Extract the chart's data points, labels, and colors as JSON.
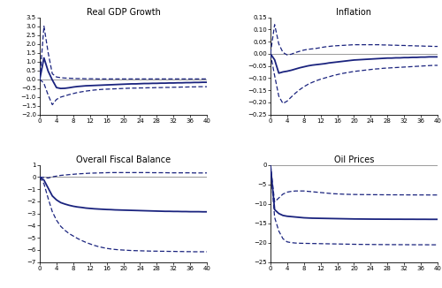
{
  "titles": [
    "Real GDP Growth",
    "Inflation",
    "Overall Fiscal Balance",
    "Oil Prices"
  ],
  "line_color": "#1a237e",
  "zero_line_color": "#999999",
  "horizon": 41,
  "xlim": [
    0,
    40
  ],
  "xticks": [
    0,
    4,
    8,
    12,
    16,
    20,
    24,
    28,
    32,
    36,
    40
  ],
  "gdp_median": [
    0.0,
    1.2,
    0.45,
    -0.05,
    -0.48,
    -0.53,
    -0.52,
    -0.49,
    -0.45,
    -0.42,
    -0.4,
    -0.38,
    -0.37,
    -0.36,
    -0.35,
    -0.34,
    -0.33,
    -0.32,
    -0.31,
    -0.3,
    -0.29,
    -0.28,
    -0.27,
    -0.27,
    -0.26,
    -0.25,
    -0.25,
    -0.24,
    -0.24,
    -0.23,
    -0.23,
    -0.22,
    -0.22,
    -0.21,
    -0.21,
    -0.2,
    -0.2,
    -0.19,
    -0.19,
    -0.18,
    -0.18
  ],
  "gdp_upper": [
    0.0,
    3.0,
    1.5,
    0.3,
    0.12,
    0.08,
    0.06,
    0.05,
    0.04,
    0.03,
    0.03,
    0.02,
    0.02,
    0.02,
    0.01,
    0.01,
    0.01,
    0.01,
    0.01,
    0.01,
    0.01,
    0.01,
    0.01,
    0.01,
    0.01,
    0.01,
    0.01,
    0.01,
    0.01,
    0.01,
    0.01,
    0.01,
    0.01,
    0.01,
    0.01,
    0.01,
    0.01,
    0.01,
    0.01,
    0.01,
    0.01
  ],
  "gdp_lower": [
    0.0,
    -0.25,
    -0.9,
    -1.45,
    -1.15,
    -1.02,
    -0.95,
    -0.88,
    -0.82,
    -0.76,
    -0.72,
    -0.68,
    -0.65,
    -0.62,
    -0.6,
    -0.58,
    -0.57,
    -0.56,
    -0.55,
    -0.54,
    -0.53,
    -0.52,
    -0.51,
    -0.51,
    -0.5,
    -0.5,
    -0.49,
    -0.49,
    -0.48,
    -0.48,
    -0.47,
    -0.47,
    -0.46,
    -0.46,
    -0.45,
    -0.45,
    -0.44,
    -0.44,
    -0.43,
    -0.43,
    -0.43
  ],
  "gdp_ylim": [
    -2,
    3.5
  ],
  "gdp_yticks": [
    -2,
    -1.5,
    -1,
    -0.5,
    0,
    0.5,
    1,
    1.5,
    2,
    2.5,
    3,
    3.5
  ],
  "inf_median": [
    0.0,
    -0.025,
    -0.08,
    -0.075,
    -0.072,
    -0.068,
    -0.063,
    -0.058,
    -0.054,
    -0.05,
    -0.047,
    -0.045,
    -0.043,
    -0.041,
    -0.038,
    -0.036,
    -0.034,
    -0.032,
    -0.03,
    -0.028,
    -0.026,
    -0.025,
    -0.024,
    -0.023,
    -0.022,
    -0.021,
    -0.02,
    -0.019,
    -0.018,
    -0.018,
    -0.017,
    -0.017,
    -0.016,
    -0.016,
    -0.015,
    -0.015,
    -0.014,
    -0.014,
    -0.013,
    -0.013,
    -0.013
  ],
  "inf_upper": [
    0.0,
    0.12,
    0.04,
    0.005,
    -0.005,
    -0.002,
    0.005,
    0.01,
    0.015,
    0.018,
    0.02,
    0.022,
    0.025,
    0.028,
    0.03,
    0.032,
    0.033,
    0.034,
    0.035,
    0.036,
    0.037,
    0.037,
    0.037,
    0.037,
    0.037,
    0.037,
    0.037,
    0.036,
    0.036,
    0.035,
    0.035,
    0.034,
    0.034,
    0.033,
    0.033,
    0.032,
    0.032,
    0.031,
    0.031,
    0.03,
    0.03
  ],
  "inf_lower": [
    0.0,
    -0.09,
    -0.175,
    -0.205,
    -0.195,
    -0.178,
    -0.162,
    -0.148,
    -0.136,
    -0.126,
    -0.118,
    -0.111,
    -0.105,
    -0.1,
    -0.095,
    -0.09,
    -0.086,
    -0.082,
    -0.079,
    -0.076,
    -0.073,
    -0.071,
    -0.069,
    -0.067,
    -0.065,
    -0.063,
    -0.062,
    -0.06,
    -0.059,
    -0.058,
    -0.057,
    -0.056,
    -0.055,
    -0.054,
    -0.053,
    -0.052,
    -0.051,
    -0.05,
    -0.049,
    -0.048,
    -0.048
  ],
  "inf_ylim": [
    -0.25,
    0.15
  ],
  "inf_yticks": [
    -0.25,
    -0.2,
    -0.15,
    -0.1,
    -0.05,
    0.0,
    0.05,
    0.1,
    0.15
  ],
  "fis_median": [
    0.0,
    -0.25,
    -0.9,
    -1.55,
    -1.88,
    -2.1,
    -2.22,
    -2.32,
    -2.4,
    -2.46,
    -2.5,
    -2.55,
    -2.58,
    -2.61,
    -2.63,
    -2.65,
    -2.67,
    -2.68,
    -2.7,
    -2.71,
    -2.72,
    -2.73,
    -2.74,
    -2.75,
    -2.76,
    -2.77,
    -2.78,
    -2.79,
    -2.8,
    -2.81,
    -2.82,
    -2.82,
    -2.83,
    -2.83,
    -2.84,
    -2.84,
    -2.85,
    -2.85,
    -2.85,
    -2.86,
    -2.86
  ],
  "fis_upper": [
    0.0,
    -0.03,
    -0.08,
    0.02,
    0.08,
    0.14,
    0.17,
    0.2,
    0.23,
    0.26,
    0.28,
    0.3,
    0.32,
    0.33,
    0.34,
    0.35,
    0.36,
    0.37,
    0.37,
    0.37,
    0.37,
    0.37,
    0.37,
    0.37,
    0.37,
    0.37,
    0.37,
    0.36,
    0.36,
    0.36,
    0.36,
    0.35,
    0.35,
    0.35,
    0.35,
    0.35,
    0.35,
    0.34,
    0.34,
    0.34,
    0.34
  ],
  "fis_lower": [
    0.0,
    -0.55,
    -1.75,
    -2.85,
    -3.55,
    -4.05,
    -4.38,
    -4.65,
    -4.85,
    -5.05,
    -5.22,
    -5.37,
    -5.5,
    -5.62,
    -5.72,
    -5.8,
    -5.87,
    -5.92,
    -5.96,
    -5.99,
    -6.01,
    -6.03,
    -6.05,
    -6.06,
    -6.07,
    -6.08,
    -6.09,
    -6.1,
    -6.1,
    -6.11,
    -6.11,
    -6.12,
    -6.12,
    -6.13,
    -6.13,
    -6.14,
    -6.14,
    -6.15,
    -6.15,
    -6.15,
    -6.15
  ],
  "fis_ylim": [
    -7,
    1
  ],
  "fis_yticks": [
    -7,
    -6,
    -5,
    -4,
    -3,
    -2,
    -1,
    0,
    1
  ],
  "oil_median": [
    0.0,
    -11.5,
    -12.5,
    -13.0,
    -13.2,
    -13.3,
    -13.4,
    -13.5,
    -13.6,
    -13.65,
    -13.7,
    -13.72,
    -13.74,
    -13.76,
    -13.78,
    -13.8,
    -13.82,
    -13.84,
    -13.86,
    -13.88,
    -13.9,
    -13.91,
    -13.92,
    -13.93,
    -13.94,
    -13.95,
    -13.95,
    -13.96,
    -13.96,
    -13.97,
    -13.97,
    -13.97,
    -13.98,
    -13.98,
    -13.98,
    -13.99,
    -13.99,
    -13.99,
    -14.0,
    -14.0,
    -14.0
  ],
  "oil_upper": [
    0.0,
    -9.5,
    -8.5,
    -7.5,
    -7.0,
    -6.8,
    -6.7,
    -6.7,
    -6.7,
    -6.8,
    -6.9,
    -7.0,
    -7.1,
    -7.2,
    -7.3,
    -7.4,
    -7.45,
    -7.5,
    -7.55,
    -7.58,
    -7.6,
    -7.62,
    -7.63,
    -7.64,
    -7.65,
    -7.66,
    -7.67,
    -7.68,
    -7.68,
    -7.69,
    -7.69,
    -7.7,
    -7.7,
    -7.71,
    -7.71,
    -7.72,
    -7.72,
    -7.72,
    -7.73,
    -7.73,
    -7.73
  ],
  "oil_lower": [
    0.0,
    -13.5,
    -17.0,
    -19.0,
    -19.8,
    -20.0,
    -20.1,
    -20.15,
    -20.18,
    -20.2,
    -20.22,
    -20.24,
    -20.26,
    -20.28,
    -20.3,
    -20.32,
    -20.34,
    -20.36,
    -20.38,
    -20.4,
    -20.42,
    -20.44,
    -20.45,
    -20.46,
    -20.47,
    -20.48,
    -20.49,
    -20.5,
    -20.5,
    -20.51,
    -20.51,
    -20.52,
    -20.52,
    -20.53,
    -20.53,
    -20.54,
    -20.54,
    -20.54,
    -20.55,
    -20.55,
    -20.55
  ],
  "oil_ylim": [
    -25,
    0
  ],
  "oil_yticks": [
    -25,
    -20,
    -15,
    -10,
    -5,
    0
  ]
}
